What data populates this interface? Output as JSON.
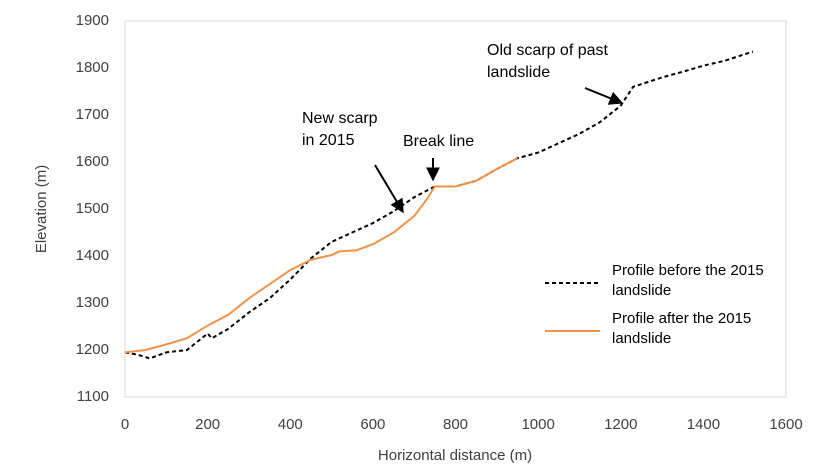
{
  "chart_data": {
    "type": "line",
    "xlabel": "Horizontal distance (m)",
    "ylabel": "Elevation (m)",
    "xlim": [
      0,
      1600
    ],
    "xticks": [
      0,
      200,
      400,
      600,
      800,
      1000,
      1200,
      1400,
      1600
    ],
    "ylim": [
      1100,
      1900
    ],
    "yticks": [
      1100,
      1200,
      1300,
      1400,
      1500,
      1600,
      1700,
      1800,
      1900
    ],
    "series": [
      {
        "name": "Profile before the 2015 landslide",
        "color": "#000000",
        "dash": true,
        "x": [
          0,
          30,
          50,
          60,
          100,
          150,
          200,
          210,
          250,
          300,
          350,
          400,
          450,
          500,
          550,
          600,
          650,
          700,
          750,
          800,
          850,
          900,
          950,
          1000,
          1050,
          1100,
          1150,
          1200,
          1230,
          1300,
          1350,
          1400,
          1450,
          1520
        ],
        "values": [
          1195,
          1190,
          1185,
          1182,
          1195,
          1200,
          1235,
          1225,
          1245,
          1280,
          1310,
          1350,
          1395,
          1430,
          1450,
          1470,
          1495,
          1525,
          1548,
          1548,
          1560,
          1585,
          1608,
          1620,
          1640,
          1660,
          1685,
          1720,
          1760,
          1780,
          1792,
          1805,
          1815,
          1835
        ]
      },
      {
        "name": "Profile after the 2015 landslide",
        "color": "#f0924a",
        "dash": false,
        "x": [
          0,
          50,
          100,
          150,
          200,
          250,
          300,
          350,
          400,
          450,
          500,
          520,
          560,
          600,
          650,
          700,
          730,
          750,
          800,
          850,
          900,
          950
        ],
        "values": [
          1195,
          1200,
          1212,
          1225,
          1252,
          1275,
          1310,
          1340,
          1370,
          1392,
          1402,
          1410,
          1412,
          1425,
          1450,
          1485,
          1520,
          1548,
          1548,
          1560,
          1585,
          1608
        ]
      }
    ],
    "annotations": [
      "New scarp in 2015",
      "Break line",
      "Old scarp of past landslide"
    ]
  }
}
